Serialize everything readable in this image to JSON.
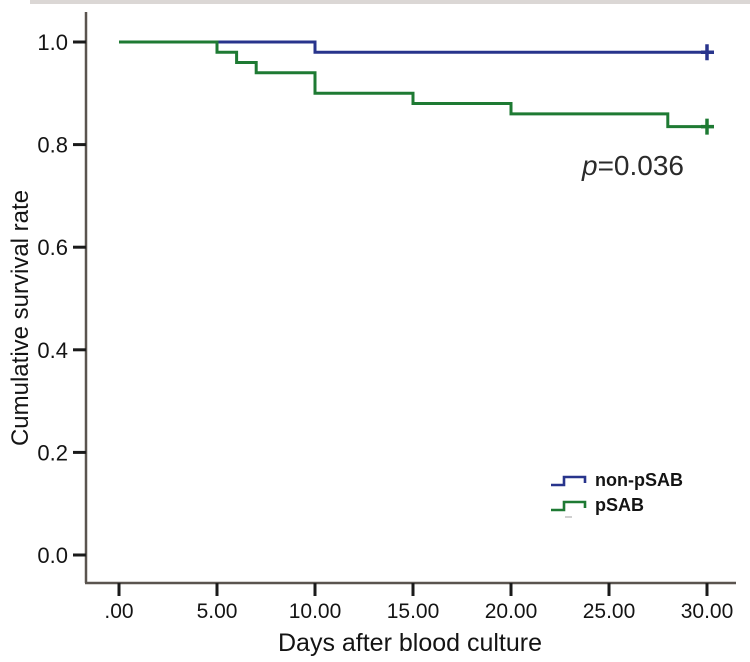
{
  "figure": {
    "background": "#ffffff"
  },
  "annotation": {
    "p_italic": "p",
    "p_value_text": "=0.036"
  },
  "legend": {
    "position": "lower-right",
    "items": [
      {
        "label": "non-pSAB",
        "color": "#28348c"
      },
      {
        "label": "pSAB",
        "color": "#1e7a33"
      }
    ]
  },
  "chart_data": {
    "type": "line",
    "subtype": "kaplan-meier-step",
    "title": "",
    "xlabel": "Days after blood culture",
    "ylabel": "Cumulative survival rate",
    "xlim": [
      0,
      30
    ],
    "ylim": [
      0,
      1.05
    ],
    "grid": false,
    "legend_position": "lower-right",
    "axis_color": "#5a544f",
    "tick_color": "#1a1a1a",
    "x_ticks": [
      {
        "value": 0,
        "label": ".00"
      },
      {
        "value": 5,
        "label": "5.00"
      },
      {
        "value": 10,
        "label": "10.00"
      },
      {
        "value": 15,
        "label": "15.00"
      },
      {
        "value": 20,
        "label": "20.00"
      },
      {
        "value": 25,
        "label": "25.00"
      },
      {
        "value": 30,
        "label": "30.00"
      }
    ],
    "y_ticks": [
      {
        "value": 0.0,
        "label": "0.0"
      },
      {
        "value": 0.2,
        "label": "0.2"
      },
      {
        "value": 0.4,
        "label": "0.4"
      },
      {
        "value": 0.6,
        "label": "0.6"
      },
      {
        "value": 0.8,
        "label": "0.8"
      },
      {
        "value": 1.0,
        "label": "1.0"
      }
    ],
    "series": [
      {
        "name": "non-pSAB",
        "color": "#28348c",
        "points": [
          [
            0,
            1.0
          ],
          [
            10,
            1.0
          ],
          [
            10,
            0.98
          ],
          [
            30,
            0.98
          ]
        ]
      },
      {
        "name": "pSAB",
        "color": "#1e7a33",
        "points": [
          [
            0,
            1.0
          ],
          [
            5,
            1.0
          ],
          [
            5,
            0.98
          ],
          [
            6,
            0.98
          ],
          [
            6,
            0.96
          ],
          [
            7,
            0.96
          ],
          [
            7,
            0.94
          ],
          [
            10,
            0.94
          ],
          [
            10,
            0.9
          ],
          [
            15,
            0.9
          ],
          [
            15,
            0.88
          ],
          [
            20,
            0.88
          ],
          [
            20,
            0.86
          ],
          [
            28,
            0.86
          ],
          [
            28,
            0.835
          ],
          [
            30,
            0.835
          ]
        ]
      }
    ],
    "censor_marks": [
      {
        "series": "non-pSAB",
        "day": 30,
        "value": 0.98
      },
      {
        "series": "pSAB",
        "day": 30,
        "value": 0.835
      }
    ],
    "annotations": [
      {
        "text": "p=0.036",
        "x_day": 26,
        "y_value": 0.76
      }
    ]
  }
}
